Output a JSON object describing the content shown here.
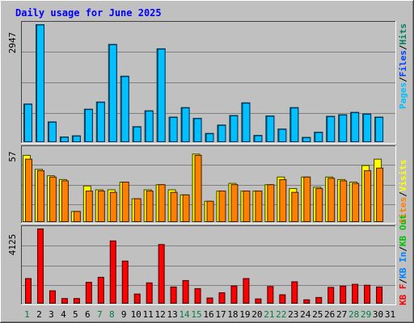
{
  "title": "Daily usage for June 2025",
  "colors": {
    "outer_bg": "#c0c0c0",
    "panel_bg": "#c0c0c0",
    "grid": "#808080",
    "title": "#0000ff",
    "axis_max": "#000000",
    "weekday": "#000000",
    "weekend": "#008040",
    "hits": "#00805c",
    "files": "#0040ff",
    "pages": "#00c0ff",
    "visits": "#ffff00",
    "sites": "#ff8000",
    "kbout": "#00c000",
    "kbin": "#0080ff",
    "kbf": "#ff0000",
    "sep": "#000000"
  },
  "chart_data": [
    {
      "type": "bar",
      "panel": "top",
      "axis_max_label": "2947",
      "ylim": [
        0,
        2947
      ],
      "legend": [
        "Pages",
        "/",
        "Files",
        "/",
        "Hits"
      ],
      "categories": [
        "1",
        "2",
        "3",
        "4",
        "5",
        "6",
        "7",
        "8",
        "9",
        "10",
        "11",
        "12",
        "13",
        "14",
        "15",
        "16",
        "17",
        "18",
        "19",
        "20",
        "21",
        "22",
        "23",
        "24",
        "25",
        "26",
        "27",
        "28",
        "29",
        "30",
        "31"
      ],
      "weekend_days": [
        1,
        7,
        8,
        14,
        15,
        21,
        22,
        28,
        29
      ],
      "series": [
        {
          "name": "Hits",
          "values": [
            950,
            2947,
            500,
            120,
            150,
            820,
            1000,
            2450,
            1650,
            380,
            780,
            2340,
            620,
            860,
            590,
            210,
            420,
            660,
            980,
            160,
            650,
            320,
            860,
            110,
            240,
            640,
            680,
            740,
            700,
            620,
            0
          ]
        },
        {
          "name": "Files",
          "values": [
            940,
            2940,
            490,
            110,
            140,
            810,
            990,
            2440,
            1640,
            370,
            770,
            2330,
            610,
            850,
            580,
            200,
            410,
            650,
            970,
            150,
            640,
            310,
            850,
            100,
            230,
            630,
            670,
            730,
            690,
            610,
            0
          ]
        }
      ]
    },
    {
      "type": "bar",
      "panel": "middle",
      "axis_max_label": "57",
      "ylim": [
        0,
        57
      ],
      "legend": [
        "Visits",
        "/",
        "Sites"
      ],
      "categories": [
        "1",
        "2",
        "3",
        "4",
        "5",
        "6",
        "7",
        "8",
        "9",
        "10",
        "11",
        "12",
        "13",
        "14",
        "15",
        "16",
        "17",
        "18",
        "19",
        "20",
        "21",
        "22",
        "23",
        "24",
        "25",
        "26",
        "27",
        "28",
        "29",
        "30",
        "31"
      ],
      "weekend_days": [
        1,
        7,
        8,
        14,
        15,
        21,
        22,
        28,
        29
      ],
      "series": [
        {
          "name": "Visits",
          "values": [
            52,
            41,
            36,
            33,
            8,
            28,
            25,
            25,
            31,
            18,
            25,
            29,
            25,
            21,
            53,
            16,
            24,
            30,
            24,
            24,
            29,
            35,
            26,
            35,
            27,
            35,
            33,
            31,
            44,
            49,
            0
          ]
        },
        {
          "name": "Sites",
          "values": [
            49,
            40,
            35,
            32,
            8,
            24,
            24,
            23,
            31,
            18,
            24,
            29,
            23,
            21,
            52,
            16,
            24,
            29,
            24,
            24,
            29,
            33,
            23,
            35,
            26,
            34,
            32,
            30,
            40,
            42,
            0
          ]
        }
      ]
    },
    {
      "type": "bar",
      "panel": "bottom",
      "axis_max_label": "4125",
      "ylim": [
        0,
        4125
      ],
      "legend": [
        "KB F",
        "/",
        "KB In",
        "/",
        "KB Out"
      ],
      "categories": [
        "1",
        "2",
        "3",
        "4",
        "5",
        "6",
        "7",
        "8",
        "9",
        "10",
        "11",
        "12",
        "13",
        "14",
        "15",
        "16",
        "17",
        "18",
        "19",
        "20",
        "21",
        "22",
        "23",
        "24",
        "25",
        "26",
        "27",
        "28",
        "29",
        "30",
        "31"
      ],
      "weekend_days": [
        1,
        7,
        8,
        14,
        15,
        21,
        22,
        28,
        29
      ],
      "series": [
        {
          "name": "KB F",
          "values": [
            1370,
            4125,
            690,
            260,
            260,
            1160,
            1440,
            3460,
            2340,
            510,
            1130,
            3260,
            900,
            1260,
            810,
            290,
            580,
            960,
            1370,
            240,
            930,
            470,
            1190,
            190,
            320,
            880,
            950,
            1050,
            1000,
            900,
            0
          ]
        }
      ]
    }
  ]
}
